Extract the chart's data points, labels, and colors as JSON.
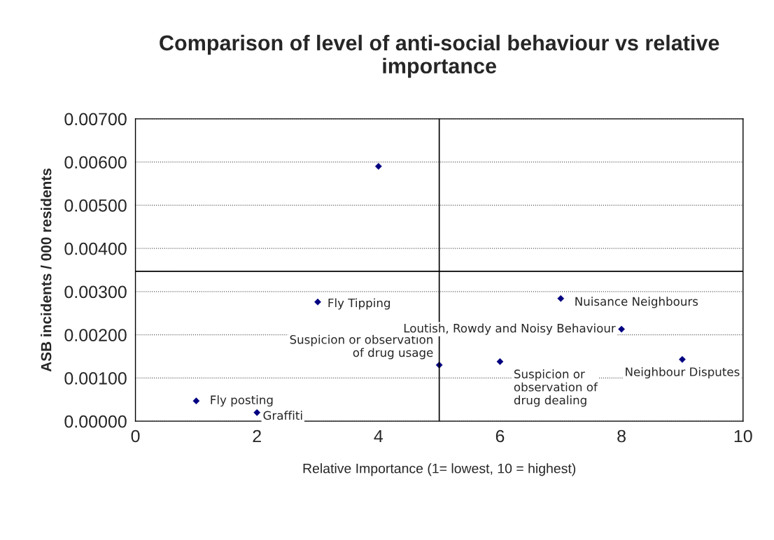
{
  "chart_data": {
    "type": "scatter",
    "title": "Comparison of level of anti-social behaviour vs relative importance",
    "xlabel": "Relative Importance (1= lowest, 10 = highest)",
    "ylabel": "ASB incidents / 000 residents",
    "x": [
      1,
      2,
      3,
      4,
      5,
      6,
      7,
      8,
      9
    ],
    "series": [
      {
        "color": "#000080",
        "values": [
          0.00047,
          0.0002,
          0.00276,
          0.0059,
          0.0013,
          0.00138,
          0.00284,
          0.00213,
          0.00143
        ]
      }
    ],
    "marker": "diamond",
    "grid": "y",
    "legend": false,
    "xlim": [
      0,
      10
    ],
    "xticks": [
      0,
      2,
      4,
      6,
      8,
      10
    ],
    "ylim": [
      0,
      0.007
    ],
    "yticks": [
      {
        "value": 0,
        "label": "0.00000"
      },
      {
        "value": 0.001,
        "label": "0.00100"
      },
      {
        "value": 0.002,
        "label": "0.00200"
      },
      {
        "value": 0.003,
        "label": "0.00300"
      },
      {
        "value": 0.004,
        "label": "0.00400"
      },
      {
        "value": 0.005,
        "label": "0.00500"
      },
      {
        "value": 0.006,
        "label": "0.00600"
      },
      {
        "value": 0.007,
        "label": "0.00700"
      }
    ],
    "ref_lines": [
      {
        "axis": "x",
        "value": 5,
        "color": "#000000"
      },
      {
        "axis": "y",
        "value": 0.00347,
        "color": "#000000"
      }
    ],
    "annotations": [
      {
        "text": "Fly posting",
        "x": 1,
        "y": 0.00047
      },
      {
        "text": "Graffiti",
        "x": 2,
        "y": 0.0002
      },
      {
        "text": "Fly Tipping",
        "x": 3,
        "y": 0.00276
      },
      {
        "text": "Suspicion or observation\nof drug usage",
        "x": 5,
        "y": 0.0013
      },
      {
        "text": "Suspicion or\nobservation of\ndrug dealing",
        "x": 6,
        "y": 0.00138
      },
      {
        "text": "Nuisance Neighbours",
        "x": 7,
        "y": 0.00284
      },
      {
        "text": "Loutish, Rowdy and Noisy Behaviour",
        "x": 8,
        "y": 0.00213
      },
      {
        "text": "Neighbour Disputes",
        "x": 9,
        "y": 0.00143
      }
    ]
  }
}
